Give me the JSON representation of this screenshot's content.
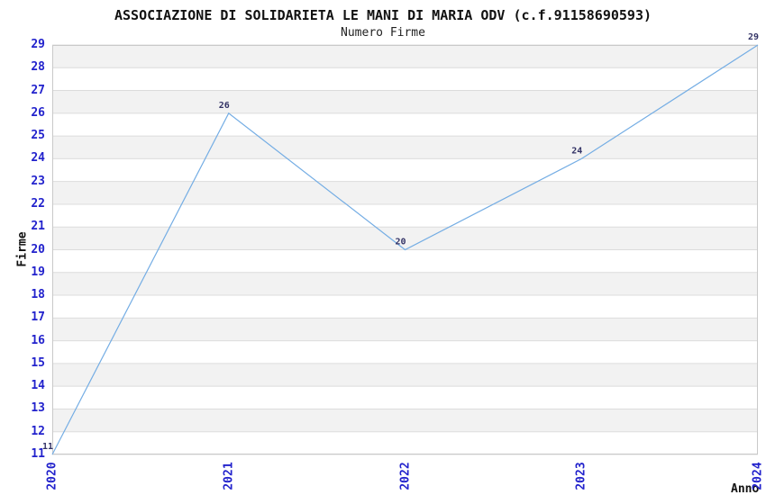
{
  "chart_data": {
    "type": "line",
    "title": "ASSOCIAZIONE DI SOLIDARIETA LE MANI DI MARIA ODV (c.f.91158690593)",
    "subtitle": "Numero Firme",
    "xlabel": "Anno",
    "ylabel": "Firme",
    "categories": [
      "2020",
      "2021",
      "2022",
      "2023",
      "2024"
    ],
    "values": [
      11,
      26,
      20,
      24,
      29
    ],
    "ylim": [
      11,
      29
    ],
    "ytick_step": 1,
    "grid": true,
    "legend": "none",
    "point_labels_shown": true,
    "colors": {
      "line": "#74ade4",
      "tick_label": "#2222cc",
      "point_label": "#333366",
      "band": "#f2f2f2",
      "grid": "#dcdcdc",
      "border": "#c9c9c9",
      "title": "#111111"
    }
  }
}
